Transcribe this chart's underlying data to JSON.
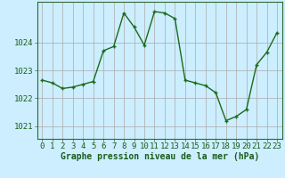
{
  "hours": [
    0,
    1,
    2,
    3,
    4,
    5,
    6,
    7,
    8,
    9,
    10,
    11,
    12,
    13,
    14,
    15,
    16,
    17,
    18,
    19,
    20,
    21,
    22,
    23
  ],
  "pressure": [
    1022.65,
    1022.55,
    1022.35,
    1022.4,
    1022.5,
    1022.6,
    1023.7,
    1023.85,
    1025.05,
    1024.55,
    1023.9,
    1025.1,
    1025.05,
    1024.85,
    1022.65,
    1022.55,
    1022.45,
    1022.2,
    1021.2,
    1021.35,
    1021.6,
    1023.2,
    1023.65,
    1024.35
  ],
  "line_color": "#1a6b1a",
  "marker": "+",
  "marker_size": 3,
  "line_width": 1.0,
  "bg_color": "#cceeff",
  "grid_color_v": "#aaaaaa",
  "grid_color_h": "#aaaaaa",
  "ylabel_ticks": [
    1021,
    1022,
    1023,
    1024
  ],
  "ylim": [
    1020.55,
    1025.45
  ],
  "xlim": [
    -0.5,
    23.5
  ],
  "xlabel": "Graphe pression niveau de la mer (hPa)",
  "xlabel_fontsize": 7,
  "tick_fontsize": 6.5,
  "spine_color": "#336633",
  "font_family": "monospace"
}
